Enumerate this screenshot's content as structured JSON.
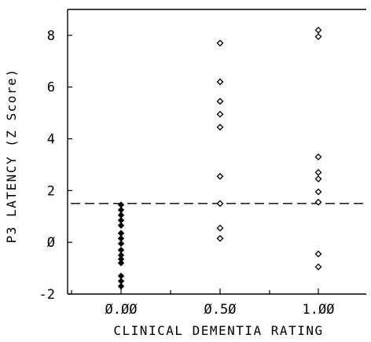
{
  "chart_data": {
    "type": "scatter",
    "title": "",
    "xlabel": "CLINICAL DEMENTIA RATING",
    "ylabel": "P3 LATENCY (Z Score)",
    "ylim": [
      -2,
      9
    ],
    "yticks": [
      -2,
      0,
      2,
      4,
      6,
      8
    ],
    "ytick_labels": [
      "-2",
      "Ø",
      "2",
      "4",
      "6",
      "8"
    ],
    "categories": [
      "Ø.ØØ",
      "Ø.5Ø",
      "1.ØØ"
    ],
    "reference_line": {
      "y": 1.5,
      "style": "dashed"
    },
    "grid": false,
    "series": [
      {
        "category_index": 0,
        "marker": "filled-diamond",
        "values": [
          1.45,
          1.25,
          1.05,
          0.85,
          0.65,
          0.35,
          0.15,
          -0.05,
          -0.3,
          -0.5,
          -0.65,
          -0.8,
          -1.3,
          -1.5,
          -1.7
        ]
      },
      {
        "category_index": 1,
        "marker": "open-diamond",
        "values": [
          7.7,
          6.2,
          5.45,
          4.95,
          4.45,
          2.55,
          1.5,
          0.55,
          0.15
        ]
      },
      {
        "category_index": 2,
        "marker": "open-diamond",
        "values": [
          8.2,
          7.95,
          3.3,
          2.7,
          2.45,
          1.95,
          1.55,
          -0.45,
          -0.95
        ]
      }
    ]
  }
}
